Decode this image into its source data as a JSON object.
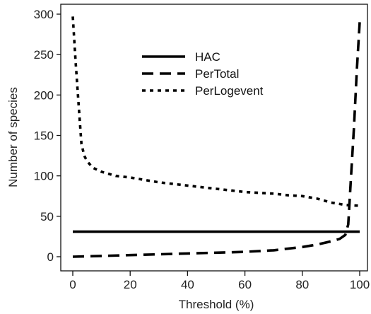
{
  "chart_data": {
    "type": "line",
    "title": "",
    "xlabel": "Threshold (%)",
    "ylabel": "Number of species",
    "xlim": [
      0,
      100
    ],
    "ylim": [
      0,
      300
    ],
    "x_ticks": [
      "0",
      "20",
      "40",
      "60",
      "80",
      "100"
    ],
    "y_ticks": [
      "0",
      "50",
      "100",
      "150",
      "200",
      "250",
      "300"
    ],
    "grid": false,
    "legend_position": "upper-center",
    "series": [
      {
        "name": "HAC",
        "style": "solid",
        "color": "#000000",
        "x": [
          0,
          100
        ],
        "y": [
          31,
          31
        ]
      },
      {
        "name": "PerTotal",
        "style": "dashed",
        "color": "#000000",
        "x": [
          0,
          10,
          20,
          30,
          40,
          50,
          60,
          70,
          80,
          85,
          90,
          93,
          95,
          96,
          97,
          98,
          99,
          100
        ],
        "y": [
          0,
          1,
          2,
          3,
          4,
          5,
          6,
          8,
          12,
          15,
          19,
          22,
          27,
          40,
          100,
          160,
          230,
          290
        ]
      },
      {
        "name": "PerLogevent",
        "style": "dotted",
        "color": "#000000",
        "x": [
          0,
          1,
          2,
          3,
          4,
          5,
          7,
          10,
          15,
          20,
          25,
          30,
          35,
          40,
          45,
          50,
          55,
          60,
          65,
          70,
          75,
          80,
          85,
          90,
          95,
          100
        ],
        "y": [
          297,
          240,
          190,
          140,
          125,
          118,
          110,
          105,
          100,
          98,
          95,
          92,
          90,
          88,
          86,
          84,
          82,
          80,
          79,
          78,
          76,
          75,
          72,
          67,
          64,
          63
        ]
      }
    ]
  }
}
